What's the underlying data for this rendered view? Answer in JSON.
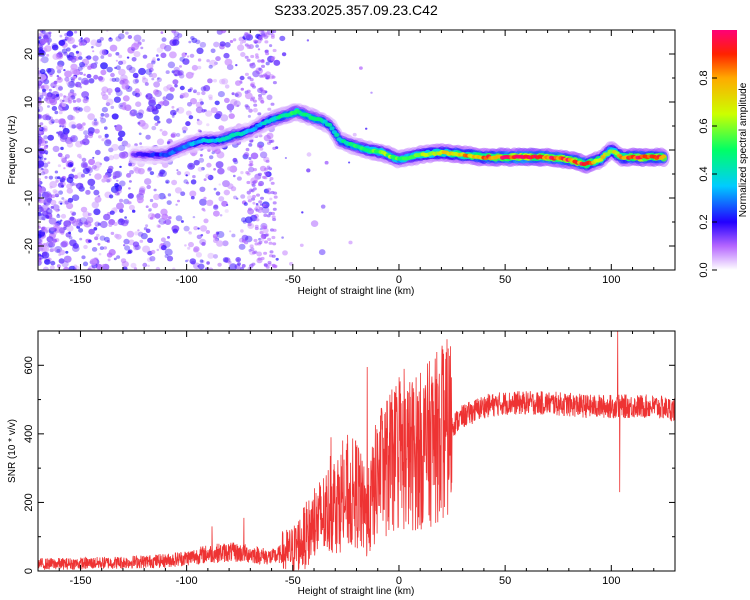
{
  "title": "S233.2025.357.09.23.C42",
  "chart_data": [
    {
      "type": "heatmap",
      "xlabel": "Height of straight line (km)",
      "ylabel": "Frequency (Hz)",
      "xlim": [
        -170,
        130
      ],
      "ylim": [
        -25,
        25
      ],
      "xticks": [
        -150,
        -100,
        -50,
        0,
        50,
        100
      ],
      "yticks": [
        -20,
        -10,
        0,
        10,
        20
      ],
      "colorbar": {
        "label": "Normalized spectral amplitude",
        "range": [
          0,
          1
        ],
        "ticks": [
          "0.0",
          "0.2",
          "0.4",
          "0.6",
          "0.8"
        ]
      },
      "ridge": [
        {
          "x": -125,
          "y": -1,
          "a": 0.15
        },
        {
          "x": -110,
          "y": -1,
          "a": 0.25
        },
        {
          "x": -100,
          "y": 1,
          "a": 0.3
        },
        {
          "x": -92,
          "y": 2,
          "a": 0.35
        },
        {
          "x": -85,
          "y": 2,
          "a": 0.4
        },
        {
          "x": -78,
          "y": 3,
          "a": 0.45
        },
        {
          "x": -70,
          "y": 4,
          "a": 0.3
        },
        {
          "x": -62,
          "y": 6,
          "a": 0.4
        },
        {
          "x": -55,
          "y": 7,
          "a": 0.45
        },
        {
          "x": -48,
          "y": 8,
          "a": 0.5
        },
        {
          "x": -42,
          "y": 7,
          "a": 0.45
        },
        {
          "x": -36,
          "y": 6,
          "a": 0.45
        },
        {
          "x": -32,
          "y": 5,
          "a": 0.4
        },
        {
          "x": -28,
          "y": 2,
          "a": 0.45
        },
        {
          "x": -22,
          "y": 1,
          "a": 0.45
        },
        {
          "x": -15,
          "y": 0,
          "a": 0.55
        },
        {
          "x": -8,
          "y": -0.5,
          "a": 0.6
        },
        {
          "x": 0,
          "y": -2,
          "a": 0.55
        },
        {
          "x": 10,
          "y": -1,
          "a": 0.6
        },
        {
          "x": 20,
          "y": -0.5,
          "a": 0.7
        },
        {
          "x": 30,
          "y": -1,
          "a": 0.75
        },
        {
          "x": 40,
          "y": -1.5,
          "a": 0.8
        },
        {
          "x": 50,
          "y": -1.5,
          "a": 0.95
        },
        {
          "x": 60,
          "y": -1.5,
          "a": 1.0
        },
        {
          "x": 70,
          "y": -1.5,
          "a": 0.9
        },
        {
          "x": 80,
          "y": -2,
          "a": 0.9
        },
        {
          "x": 88,
          "y": -3,
          "a": 0.85
        },
        {
          "x": 95,
          "y": -2,
          "a": 0.7
        },
        {
          "x": 100,
          "y": 0,
          "a": 0.6
        },
        {
          "x": 105,
          "y": -1.5,
          "a": 0.8
        },
        {
          "x": 115,
          "y": -1.5,
          "a": 0.95
        },
        {
          "x": 125,
          "y": -1.5,
          "a": 0.85
        }
      ]
    },
    {
      "type": "line",
      "xlabel": "Height of straight line (km)",
      "ylabel": "SNR (10 * v/v)",
      "xlim": [
        -170,
        130
      ],
      "ylim": [
        0,
        700
      ],
      "xticks": [
        -150,
        -100,
        -50,
        0,
        50,
        100
      ],
      "yticks": [
        0,
        200,
        400,
        600
      ],
      "color": "#ee3333",
      "envelope": [
        {
          "x": -170,
          "y": 20
        },
        {
          "x": -150,
          "y": 22
        },
        {
          "x": -130,
          "y": 25
        },
        {
          "x": -110,
          "y": 30
        },
        {
          "x": -100,
          "y": 38
        },
        {
          "x": -90,
          "y": 50
        },
        {
          "x": -80,
          "y": 55
        },
        {
          "x": -70,
          "y": 50
        },
        {
          "x": -60,
          "y": 40
        },
        {
          "x": -50,
          "y": 60
        },
        {
          "x": -40,
          "y": 130
        },
        {
          "x": -30,
          "y": 200
        },
        {
          "x": -20,
          "y": 230
        },
        {
          "x": -15,
          "y": 150
        },
        {
          "x": -10,
          "y": 280
        },
        {
          "x": -5,
          "y": 310
        },
        {
          "x": 0,
          "y": 330
        },
        {
          "x": 10,
          "y": 350
        },
        {
          "x": 20,
          "y": 400
        },
        {
          "x": 30,
          "y": 450
        },
        {
          "x": 40,
          "y": 480
        },
        {
          "x": 50,
          "y": 490
        },
        {
          "x": 60,
          "y": 490
        },
        {
          "x": 70,
          "y": 490
        },
        {
          "x": 80,
          "y": 485
        },
        {
          "x": 90,
          "y": 480
        },
        {
          "x": 100,
          "y": 480
        },
        {
          "x": 110,
          "y": 480
        },
        {
          "x": 120,
          "y": 480
        },
        {
          "x": 130,
          "y": 470
        }
      ],
      "spikes": [
        {
          "x": -88,
          "y": 130
        },
        {
          "x": -73,
          "y": 155
        },
        {
          "x": -15,
          "y": 595
        },
        {
          "x": -19,
          "y": 360
        },
        {
          "x": -32,
          "y": 390
        },
        {
          "x": -8,
          "y": 460
        },
        {
          "x": 103,
          "y": 700
        },
        {
          "x": 104,
          "y": 230
        }
      ]
    }
  ]
}
